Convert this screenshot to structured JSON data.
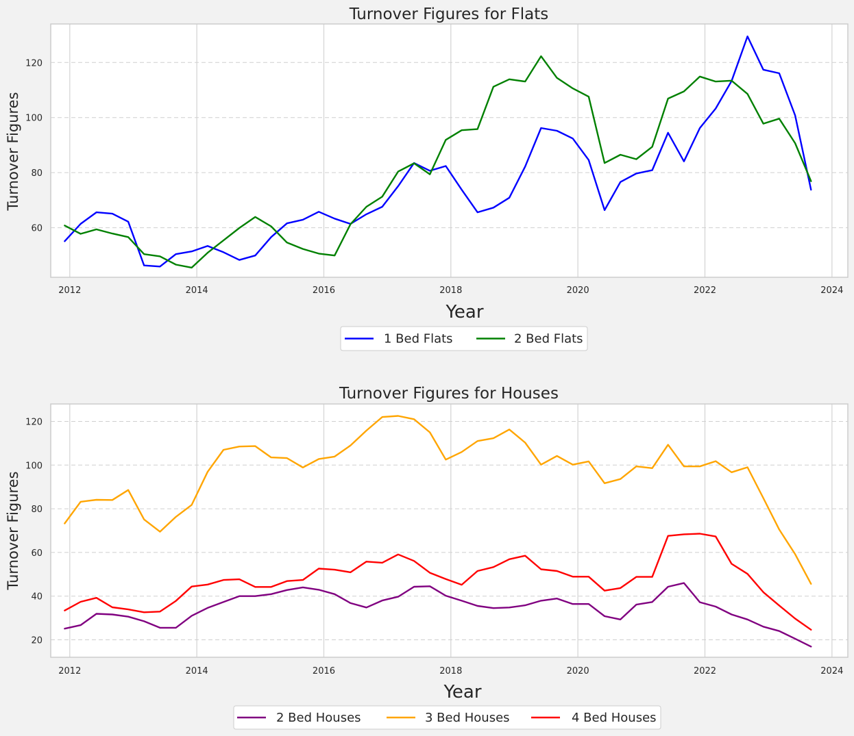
{
  "chart_data": [
    {
      "type": "line",
      "title": "Turnover Figures for Flats",
      "xlabel": "Year",
      "ylabel": "Turnover Figures",
      "xlim": [
        2011.7,
        2024.25
      ],
      "ylim": [
        42,
        134
      ],
      "xticks": [
        2012,
        2014,
        2016,
        2018,
        2020,
        2022,
        2024
      ],
      "yticks": [
        60,
        80,
        100,
        120
      ],
      "x": [
        2011.92,
        2012.17,
        2012.42,
        2012.67,
        2012.92,
        2013.17,
        2013.42,
        2013.67,
        2013.92,
        2014.17,
        2014.42,
        2014.67,
        2014.92,
        2015.17,
        2015.42,
        2015.67,
        2015.92,
        2016.17,
        2016.42,
        2016.67,
        2016.92,
        2017.17,
        2017.42,
        2017.67,
        2017.92,
        2018.17,
        2018.42,
        2018.67,
        2018.92,
        2019.17,
        2019.42,
        2019.67,
        2019.92,
        2020.17,
        2020.42,
        2020.67,
        2020.92,
        2021.17,
        2021.42,
        2021.67,
        2021.92,
        2022.17,
        2022.42,
        2022.67,
        2022.92,
        2023.17,
        2023.42,
        2023.67
      ],
      "series": [
        {
          "name": "1 Bed Flats",
          "color": "#0000ff",
          "values": [
            55.1,
            61.4,
            65.6,
            65.1,
            62.2,
            46.3,
            45.9,
            50.4,
            51.4,
            53.4,
            51.1,
            48.3,
            49.9,
            56.6,
            61.6,
            62.9,
            65.8,
            63.3,
            61.4,
            64.9,
            67.6,
            75.1,
            83.5,
            80.7,
            82.4,
            73.8,
            65.6,
            67.3,
            70.9,
            82.2,
            96.2,
            95.2,
            92.4,
            84.6,
            66.4,
            76.6,
            79.7,
            80.9,
            94.5,
            84.1,
            96.2,
            103.3,
            113.3,
            129.5,
            117.4,
            116.1,
            100.8,
            73.8
          ]
        },
        {
          "name": "2 Bed Flats",
          "color": "#008000",
          "values": [
            60.8,
            57.8,
            59.4,
            57.9,
            56.6,
            50.4,
            49.6,
            46.6,
            45.5,
            50.9,
            55.4,
            59.9,
            63.9,
            60.5,
            54.6,
            52.3,
            50.6,
            49.9,
            61.3,
            67.6,
            71.3,
            80.4,
            83.4,
            79.4,
            91.9,
            95.4,
            95.8,
            111.2,
            113.9,
            113.1,
            122.3,
            114.4,
            110.6,
            107.6,
            83.5,
            86.5,
            84.9,
            89.4,
            106.9,
            109.5,
            114.9,
            113.1,
            113.4,
            108.6,
            97.8,
            99.6,
            90.7,
            76.9
          ]
        }
      ]
    },
    {
      "type": "line",
      "title": "Turnover Figures for Houses",
      "xlabel": "Year",
      "ylabel": "Turnover Figures",
      "xlim": [
        2011.7,
        2024.25
      ],
      "ylim": [
        12,
        128
      ],
      "xticks": [
        2012,
        2014,
        2016,
        2018,
        2020,
        2022,
        2024
      ],
      "yticks": [
        20,
        40,
        60,
        80,
        100,
        120
      ],
      "x": [
        2011.92,
        2012.17,
        2012.42,
        2012.67,
        2012.92,
        2013.17,
        2013.42,
        2013.67,
        2013.92,
        2014.17,
        2014.42,
        2014.67,
        2014.92,
        2015.17,
        2015.42,
        2015.67,
        2015.92,
        2016.17,
        2016.42,
        2016.67,
        2016.92,
        2017.17,
        2017.42,
        2017.67,
        2017.92,
        2018.17,
        2018.42,
        2018.67,
        2018.92,
        2019.17,
        2019.42,
        2019.67,
        2019.92,
        2020.17,
        2020.42,
        2020.67,
        2020.92,
        2021.17,
        2021.42,
        2021.67,
        2021.92,
        2022.17,
        2022.42,
        2022.67,
        2022.92,
        2023.17,
        2023.42,
        2023.67
      ],
      "series": [
        {
          "name": "2 Bed Houses",
          "color": "#800080",
          "values": [
            25.1,
            26.7,
            31.9,
            31.6,
            30.6,
            28.5,
            25.5,
            25.5,
            31.0,
            34.6,
            37.3,
            40.0,
            40.0,
            40.9,
            42.8,
            44.0,
            42.9,
            40.9,
            36.8,
            34.8,
            38.0,
            39.7,
            44.3,
            44.5,
            40.2,
            37.9,
            35.5,
            34.5,
            34.8,
            35.8,
            37.9,
            38.9,
            36.4,
            36.4,
            30.8,
            29.3,
            36.1,
            37.3,
            44.3,
            46.0,
            37.2,
            35.2,
            31.6,
            29.3,
            26.0,
            24.0,
            20.5,
            16.9
          ]
        },
        {
          "name": "3 Bed Houses",
          "color": "#ffa500",
          "values": [
            73.3,
            83.2,
            84.1,
            84.0,
            88.6,
            75.1,
            69.5,
            76.3,
            81.8,
            96.9,
            107.0,
            108.5,
            108.7,
            103.5,
            103.2,
            98.9,
            102.8,
            103.9,
            109.0,
            115.8,
            122.0,
            122.5,
            121.0,
            115.0,
            102.5,
            106.0,
            111.0,
            112.3,
            116.3,
            110.3,
            100.2,
            104.2,
            100.2,
            101.7,
            91.7,
            93.6,
            99.4,
            98.6,
            109.3,
            99.4,
            99.4,
            101.8,
            96.7,
            99.0,
            84.9,
            70.5,
            59.2,
            45.6
          ]
        },
        {
          "name": "4 Bed Houses",
          "color": "#ff0000",
          "values": [
            33.4,
            37.4,
            39.2,
            34.9,
            33.9,
            32.6,
            32.9,
            37.8,
            44.4,
            45.3,
            47.4,
            47.7,
            44.2,
            44.2,
            46.9,
            47.4,
            52.6,
            52.1,
            50.9,
            55.8,
            55.3,
            59.1,
            56.1,
            50.7,
            47.8,
            45.2,
            51.5,
            53.3,
            56.9,
            58.5,
            52.3,
            51.5,
            48.9,
            48.9,
            42.5,
            43.7,
            48.8,
            48.8,
            67.6,
            68.3,
            68.6,
            67.3,
            54.8,
            50.2,
            41.8,
            35.7,
            29.7,
            24.6
          ]
        }
      ]
    }
  ]
}
